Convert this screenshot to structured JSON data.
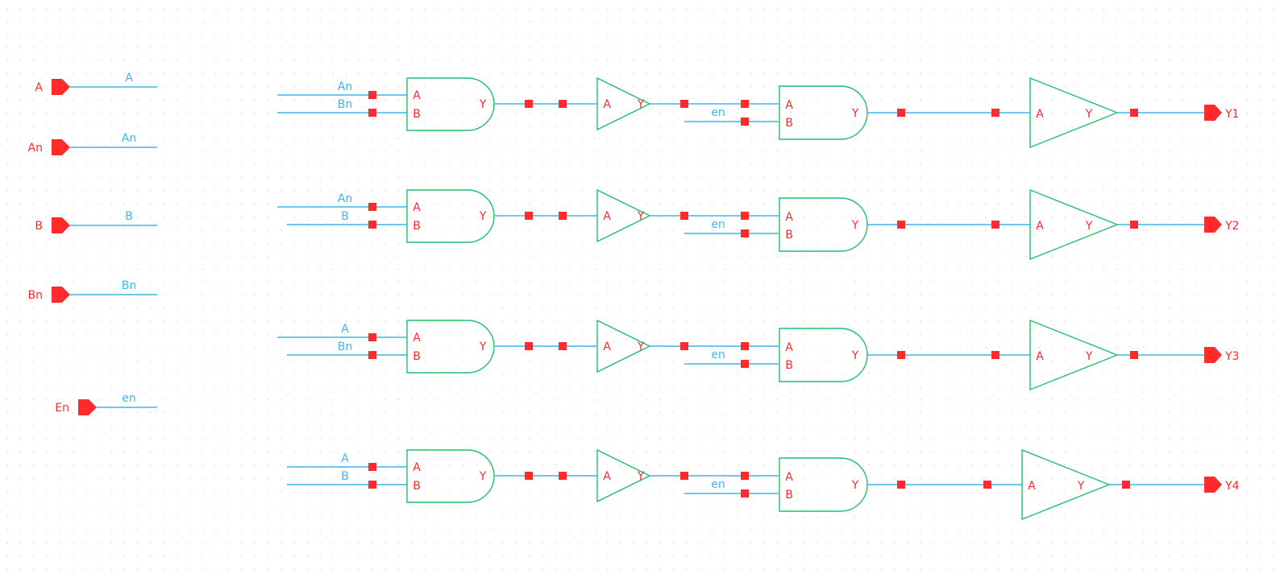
{
  "colors": {
    "background": "#ffffff",
    "grid_dot": "#bdbdbd",
    "wire": "#3fb6e8",
    "gate_outline": "#1fbf6a",
    "pin": "#ff2a2a",
    "pin_label": "#ff2a2a",
    "net_label": "#3fb6e8"
  },
  "input_ports": [
    {
      "name": "A",
      "net": "A"
    },
    {
      "name": "An",
      "net": "An"
    },
    {
      "name": "B",
      "net": "B"
    },
    {
      "name": "Bn",
      "net": "Bn"
    },
    {
      "name": "En",
      "net": "en"
    }
  ],
  "rows": [
    {
      "in_a": "An",
      "in_b": "Bn",
      "enable_net": "en",
      "output": "Y1"
    },
    {
      "in_a": "An",
      "in_b": "B",
      "enable_net": "en",
      "output": "Y2"
    },
    {
      "in_a": "A",
      "in_b": "Bn",
      "enable_net": "en",
      "output": "Y3"
    },
    {
      "in_a": "A",
      "in_b": "B",
      "enable_net": "en",
      "output": "Y4"
    }
  ],
  "gate_pins": {
    "and_a": "A",
    "and_b": "B",
    "and_y": "Y",
    "inv_a": "A",
    "inv_y": "Y",
    "buf_a": "A",
    "buf_y": "Y"
  }
}
